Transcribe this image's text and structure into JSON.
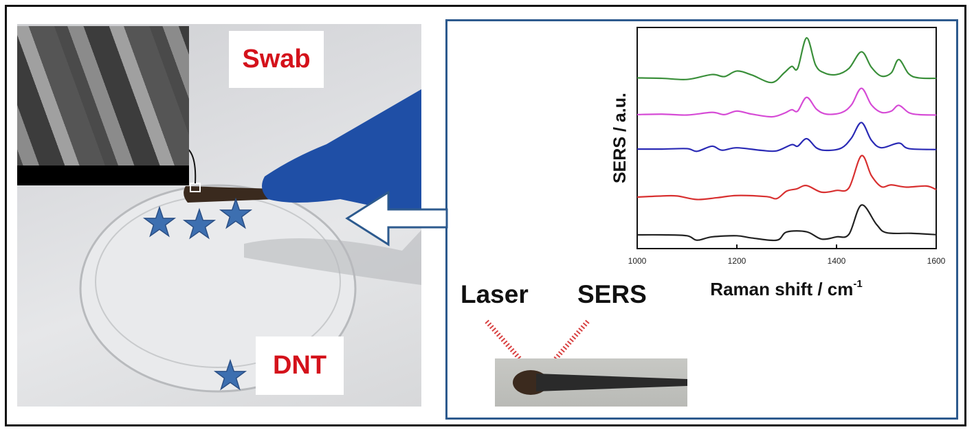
{
  "left_panel": {
    "swab_label": "Swab",
    "analyte_label": "DNT",
    "star_count": 4,
    "star_color": "#3d6fb0",
    "glove_color": "#1f4fa6"
  },
  "right_panel": {
    "border_color": "#2d5a8e",
    "laser_label": "Laser",
    "sers_label": "SERS",
    "beam_color": "#d84040"
  },
  "chart_data": {
    "type": "line",
    "xlabel": "Raman shift / cm",
    "xlabel_sup": "-1",
    "ylabel": "SERS / a.u.",
    "xlim": [
      1000,
      1600
    ],
    "ylim": [
      0,
      100
    ],
    "xticks": [
      "1000",
      "1200",
      "1400",
      "1600"
    ],
    "grid": false,
    "series": [
      {
        "color": "#3a8f3a",
        "points": [
          [
            1000,
            77.2
          ],
          [
            1050,
            77
          ],
          [
            1100,
            76.5
          ],
          [
            1150,
            78.7
          ],
          [
            1175,
            77.8
          ],
          [
            1200,
            80.3
          ],
          [
            1230,
            78.5
          ],
          [
            1270,
            75.1
          ],
          [
            1295,
            79.5
          ],
          [
            1310,
            82.4
          ],
          [
            1322,
            81.5
          ],
          [
            1340,
            95.3
          ],
          [
            1358,
            83
          ],
          [
            1375,
            79.5
          ],
          [
            1400,
            78.7
          ],
          [
            1425,
            81.5
          ],
          [
            1450,
            89
          ],
          [
            1470,
            82
          ],
          [
            1490,
            78
          ],
          [
            1510,
            79.5
          ],
          [
            1525,
            85.5
          ],
          [
            1545,
            79
          ],
          [
            1565,
            77.2
          ],
          [
            1600,
            77
          ]
        ]
      },
      {
        "color": "#d64bd6",
        "points": [
          [
            1000,
            60.6
          ],
          [
            1050,
            60.8
          ],
          [
            1100,
            60.4
          ],
          [
            1150,
            61.6
          ],
          [
            1175,
            60.6
          ],
          [
            1200,
            62.2
          ],
          [
            1230,
            60.8
          ],
          [
            1270,
            59.6
          ],
          [
            1295,
            61.2
          ],
          [
            1310,
            62.8
          ],
          [
            1322,
            62.2
          ],
          [
            1340,
            68.4
          ],
          [
            1360,
            63
          ],
          [
            1380,
            60.8
          ],
          [
            1410,
            61.5
          ],
          [
            1430,
            65
          ],
          [
            1450,
            72.5
          ],
          [
            1470,
            65
          ],
          [
            1490,
            61.6
          ],
          [
            1510,
            62.2
          ],
          [
            1525,
            64.8
          ],
          [
            1545,
            61.5
          ],
          [
            1565,
            60.6
          ],
          [
            1600,
            60.4
          ]
        ]
      },
      {
        "color": "#2a2ab5",
        "points": [
          [
            1000,
            45
          ],
          [
            1050,
            45
          ],
          [
            1100,
            45.2
          ],
          [
            1120,
            44
          ],
          [
            1150,
            46.3
          ],
          [
            1170,
            44.5
          ],
          [
            1200,
            45.6
          ],
          [
            1250,
            44.4
          ],
          [
            1280,
            44.2
          ],
          [
            1310,
            47
          ],
          [
            1322,
            46.3
          ],
          [
            1340,
            49.7
          ],
          [
            1360,
            45.5
          ],
          [
            1380,
            44.4
          ],
          [
            1410,
            45.5
          ],
          [
            1430,
            50
          ],
          [
            1450,
            57
          ],
          [
            1470,
            49
          ],
          [
            1490,
            45.6
          ],
          [
            1525,
            47.7
          ],
          [
            1545,
            45.2
          ],
          [
            1600,
            44.8
          ]
        ]
      },
      {
        "color": "#d83030",
        "points": [
          [
            1000,
            23.3
          ],
          [
            1050,
            23.8
          ],
          [
            1080,
            23.8
          ],
          [
            1120,
            22.2
          ],
          [
            1160,
            23
          ],
          [
            1200,
            24
          ],
          [
            1260,
            23.5
          ],
          [
            1280,
            22.6
          ],
          [
            1300,
            26
          ],
          [
            1320,
            27
          ],
          [
            1340,
            28.5
          ],
          [
            1370,
            25.5
          ],
          [
            1400,
            26.3
          ],
          [
            1425,
            27.5
          ],
          [
            1450,
            42
          ],
          [
            1470,
            33
          ],
          [
            1490,
            28
          ],
          [
            1510,
            28.8
          ],
          [
            1540,
            27.8
          ],
          [
            1580,
            28.3
          ],
          [
            1600,
            26.7
          ]
        ]
      },
      {
        "color": "#222222",
        "points": [
          [
            1000,
            6.2
          ],
          [
            1050,
            6.2
          ],
          [
            1100,
            5.8
          ],
          [
            1120,
            3.8
          ],
          [
            1150,
            5.3
          ],
          [
            1200,
            5.8
          ],
          [
            1230,
            4.8
          ],
          [
            1280,
            3.8
          ],
          [
            1300,
            7.5
          ],
          [
            1340,
            7.6
          ],
          [
            1370,
            4.3
          ],
          [
            1400,
            5.3
          ],
          [
            1425,
            6.5
          ],
          [
            1450,
            19.7
          ],
          [
            1480,
            11
          ],
          [
            1500,
            7.2
          ],
          [
            1550,
            6.9
          ],
          [
            1600,
            6.3
          ]
        ]
      }
    ]
  }
}
